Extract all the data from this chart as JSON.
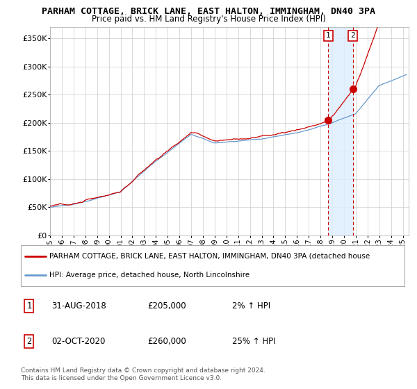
{
  "title": "PARHAM COTTAGE, BRICK LANE, EAST HALTON, IMMINGHAM, DN40 3PA",
  "subtitle": "Price paid vs. HM Land Registry's House Price Index (HPI)",
  "ylabel_ticks": [
    "£0",
    "£50K",
    "£100K",
    "£150K",
    "£200K",
    "£250K",
    "£300K",
    "£350K"
  ],
  "ytick_values": [
    0,
    50000,
    100000,
    150000,
    200000,
    250000,
    300000,
    350000
  ],
  "ylim": [
    0,
    370000
  ],
  "xlim_start": 1995.0,
  "xlim_end": 2025.5,
  "transaction1_date": 2018.667,
  "transaction1_price": 205000,
  "transaction2_date": 2020.75,
  "transaction2_price": 260000,
  "legend_line1": "PARHAM COTTAGE, BRICK LANE, EAST HALTON, IMMINGHAM, DN40 3PA (detached house",
  "legend_line2": "HPI: Average price, detached house, North Lincolnshire",
  "annotation1_label": "1",
  "annotation1_date": "31-AUG-2018",
  "annotation1_price": "£205,000",
  "annotation1_hpi": "2% ↑ HPI",
  "annotation2_label": "2",
  "annotation2_date": "02-OCT-2020",
  "annotation2_price": "£260,000",
  "annotation2_hpi": "25% ↑ HPI",
  "footer": "Contains HM Land Registry data © Crown copyright and database right 2024.\nThis data is licensed under the Open Government Licence v3.0.",
  "line_color_red": "#cc0000",
  "line_color_blue": "#6699cc",
  "vline_color": "#cc0000",
  "shade_color": "#ddeeff",
  "background_color": "#ffffff",
  "grid_color": "#cccccc",
  "box_color": "#cc0000"
}
